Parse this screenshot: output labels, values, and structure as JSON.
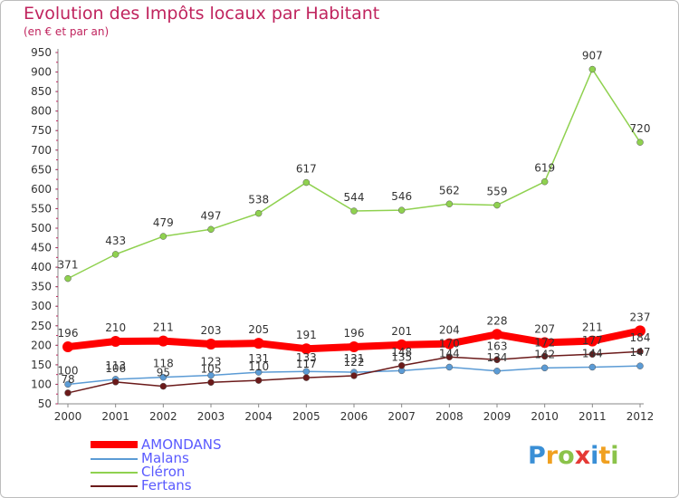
{
  "chart_data": {
    "type": "line",
    "title": "Evolution des Impôts locaux par Habitant",
    "subtitle": "(en € et par an)",
    "x": [
      "2000",
      "2001",
      "2002",
      "2003",
      "2004",
      "2005",
      "2006",
      "2007",
      "2008",
      "2009",
      "2010",
      "2011",
      "2012"
    ],
    "ylim": [
      50,
      950
    ],
    "yticks": [
      50,
      100,
      150,
      200,
      250,
      300,
      350,
      400,
      450,
      500,
      550,
      600,
      650,
      700,
      750,
      800,
      850,
      900,
      950
    ],
    "grid": false,
    "legend_position": "bottom-left",
    "series": [
      {
        "name": "AMONDANS",
        "color": "#ff0000",
        "values": [
          196,
          210,
          211,
          203,
          205,
          191,
          196,
          201,
          204,
          228,
          207,
          211,
          237
        ]
      },
      {
        "name": "Malans",
        "color": "#5b9bd5",
        "values": [
          100,
          113,
          118,
          123,
          131,
          133,
          131,
          135,
          144,
          134,
          142,
          144,
          147
        ]
      },
      {
        "name": "Cléron",
        "color": "#8fd14f",
        "values": [
          371,
          433,
          479,
          497,
          538,
          617,
          544,
          546,
          562,
          559,
          619,
          907,
          720
        ]
      },
      {
        "name": "Fertans",
        "color": "#6b1a1a",
        "values": [
          78,
          106,
          95,
          105,
          110,
          117,
          122,
          148,
          170,
          163,
          172,
          177,
          184
        ]
      }
    ],
    "data_labels": [
      {
        "series": "AMONDANS",
        "labels": [
          "196",
          "210",
          "211",
          "203",
          "205",
          "191",
          "196",
          "201",
          "204",
          "228",
          "207",
          "211",
          "237"
        ]
      },
      {
        "series": "Malans",
        "labels": [
          "100",
          "113",
          "118",
          "123",
          "131",
          "133",
          "131",
          "135",
          "144",
          "134",
          "142",
          "144",
          "147"
        ]
      },
      {
        "series": "Cléron",
        "labels": [
          "371",
          "433",
          "479",
          "497",
          "538",
          "617",
          "544",
          "546",
          "562",
          "559",
          "619",
          "907",
          "720"
        ]
      },
      {
        "series": "Fertans",
        "labels": [
          "78",
          "106",
          "95",
          "105",
          "110",
          "117",
          "122",
          "148",
          "170",
          "163",
          "172",
          "177",
          "184"
        ]
      }
    ]
  },
  "brand": {
    "logo_parts": [
      "P",
      "r",
      "o",
      "x",
      "i",
      "t",
      "i"
    ]
  }
}
